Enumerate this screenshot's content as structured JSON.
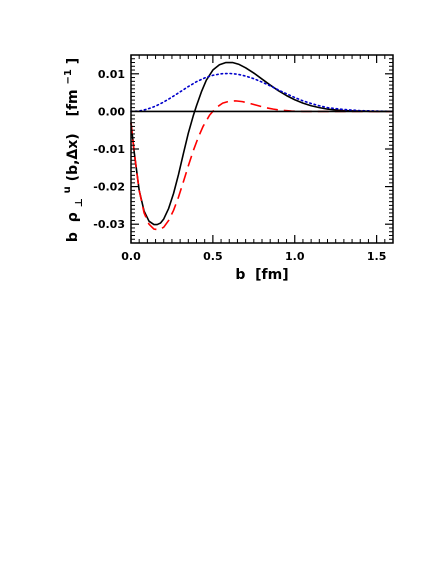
{
  "chart_data": {
    "type": "line",
    "xlabel": "b  [fm]",
    "ylabel_parts": {
      "b": "b",
      "rho": "ρ",
      "perp": "⊥",
      "sup": "u",
      "args": "(b,Δx)",
      "unit_open": "[fm",
      "unit_exp": "−1",
      "unit_close": "]"
    },
    "xlim": [
      0.0,
      1.6
    ],
    "ylim": [
      -0.035,
      0.015
    ],
    "x_ticks": [
      0.0,
      0.5,
      1.0,
      1.5
    ],
    "x_tick_labels": [
      "0.0",
      "0.5",
      "1.0",
      "1.5"
    ],
    "y_ticks": [
      -0.03,
      -0.02,
      -0.01,
      0.0,
      0.01
    ],
    "y_tick_labels": [
      "-0.03",
      "-0.02",
      "-0.01",
      "0.00",
      "0.01"
    ],
    "grid": false,
    "series": [
      {
        "style": "solid",
        "color": "#000000",
        "x": [
          0.0,
          0.02,
          0.05,
          0.08,
          0.11,
          0.14,
          0.16,
          0.18,
          0.2,
          0.23,
          0.26,
          0.29,
          0.32,
          0.35,
          0.38,
          0.4,
          0.43,
          0.46,
          0.5,
          0.54,
          0.58,
          0.62,
          0.66,
          0.7,
          0.75,
          0.8,
          0.85,
          0.9,
          0.95,
          1.0,
          1.05,
          1.1,
          1.15,
          1.2,
          1.3,
          1.4,
          1.5,
          1.6
        ],
        "y": [
          -0.003,
          -0.011,
          -0.021,
          -0.0265,
          -0.0292,
          -0.0301,
          -0.0301,
          -0.0297,
          -0.0286,
          -0.0258,
          -0.0218,
          -0.0168,
          -0.0112,
          -0.0058,
          -0.0012,
          0.0015,
          0.0052,
          0.0083,
          0.011,
          0.0124,
          0.013,
          0.013,
          0.0125,
          0.0116,
          0.0102,
          0.0086,
          0.007,
          0.0055,
          0.0042,
          0.0031,
          0.0022,
          0.0015,
          0.001,
          0.0006,
          0.0002,
          0.0001,
          0.0,
          0.0
        ]
      },
      {
        "style": "dashed",
        "color": "#ff0000",
        "x": [
          0.0,
          0.02,
          0.05,
          0.08,
          0.11,
          0.14,
          0.17,
          0.2,
          0.23,
          0.26,
          0.29,
          0.32,
          0.35,
          0.38,
          0.41,
          0.44,
          0.48,
          0.52,
          0.56,
          0.6,
          0.64,
          0.68,
          0.72,
          0.77,
          0.82,
          0.87,
          0.92,
          0.98,
          1.05,
          1.12,
          1.2,
          1.3,
          1.4,
          1.5,
          1.6
        ],
        "y": [
          -0.003,
          -0.011,
          -0.021,
          -0.027,
          -0.03,
          -0.0313,
          -0.0315,
          -0.0308,
          -0.029,
          -0.0263,
          -0.0228,
          -0.0187,
          -0.0145,
          -0.0105,
          -0.007,
          -0.004,
          -0.001,
          0.001,
          0.0022,
          0.0027,
          0.0028,
          0.0026,
          0.0022,
          0.0016,
          0.001,
          0.0006,
          0.0003,
          0.0001,
          0.0,
          0.0,
          0.0,
          0.0,
          0.0,
          0.0,
          0.0
        ]
      },
      {
        "style": "dotted",
        "color": "#0000cc",
        "x": [
          0.0,
          0.05,
          0.1,
          0.15,
          0.2,
          0.25,
          0.3,
          0.35,
          0.4,
          0.45,
          0.5,
          0.55,
          0.6,
          0.65,
          0.7,
          0.75,
          0.8,
          0.85,
          0.9,
          0.95,
          1.0,
          1.05,
          1.1,
          1.15,
          1.2,
          1.3,
          1.4,
          1.5,
          1.6
        ],
        "y": [
          0.0,
          0.0001,
          0.0006,
          0.0014,
          0.0025,
          0.0038,
          0.0052,
          0.0066,
          0.0079,
          0.0089,
          0.0096,
          0.01,
          0.0101,
          0.0099,
          0.0094,
          0.0087,
          0.0078,
          0.0068,
          0.0057,
          0.0047,
          0.0037,
          0.0028,
          0.0021,
          0.0015,
          0.001,
          0.0005,
          0.0002,
          0.0001,
          0.0
        ]
      },
      {
        "style": "solid",
        "color": "#000000",
        "x": [
          0.0,
          1.6
        ],
        "y": [
          0.0,
          0.0
        ]
      }
    ]
  }
}
